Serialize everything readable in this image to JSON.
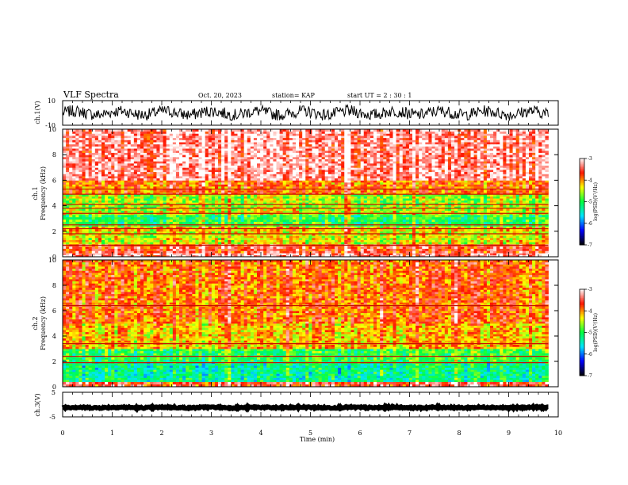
{
  "header": {
    "title": "VLF Spectra",
    "date": "Oct. 20, 2023",
    "station": "station= KAP",
    "start": "start  UT =   2 : 30 : 1"
  },
  "chart_data": [
    {
      "type": "line",
      "panel": "ch1-waveform",
      "ylabel": "ch.1(V)",
      "ylim": [
        -10,
        10
      ],
      "yticks": [
        "10",
        "-10"
      ],
      "xlim": [
        0,
        10
      ],
      "x_extent_min": 9.8,
      "description_values": {
        "mean": 0,
        "amplitude_approx": 6
      }
    },
    {
      "type": "heatmap",
      "panel": "ch1-spectrogram",
      "label_line1": "ch.1",
      "ylabel": "Frequency (kHz)",
      "ylim": [
        0,
        10
      ],
      "yticks": [
        "0",
        "2",
        "4",
        "6",
        "8",
        "10"
      ],
      "xlim": [
        0,
        10
      ],
      "x_extent_min": 9.8,
      "bands_khz": [
        {
          "from": 0,
          "to": 0.3,
          "level": -3.3
        },
        {
          "from": 0.3,
          "to": 1.0,
          "level": -3.6
        },
        {
          "from": 1.0,
          "to": 2.0,
          "level": -4.4
        },
        {
          "from": 2.0,
          "to": 2.4,
          "level": -4.2
        },
        {
          "from": 2.4,
          "to": 3.3,
          "level": -5.0
        },
        {
          "from": 3.3,
          "to": 3.8,
          "level": -4.5
        },
        {
          "from": 3.8,
          "to": 4.9,
          "level": -4.6
        },
        {
          "from": 4.9,
          "to": 6.0,
          "level": -3.9
        },
        {
          "from": 6.0,
          "to": 10.0,
          "level": -3.3
        }
      ],
      "lines_khz": [
        0.9,
        1.8,
        2.2,
        2.5,
        3.4,
        3.8,
        4.1,
        4.9,
        5.3
      ],
      "colorbar": {
        "label": "log(PSD)(V²/Hz)",
        "min": -7,
        "max": -3,
        "ticks": [
          "-3",
          "-4",
          "-5",
          "-6",
          "-7"
        ]
      }
    },
    {
      "type": "heatmap",
      "panel": "ch2-spectrogram",
      "label_line1": "ch.2",
      "ylabel": "Frequency (kHz)",
      "ylim": [
        0,
        10
      ],
      "yticks": [
        "0",
        "2",
        "4",
        "6",
        "8",
        "10"
      ],
      "xlim": [
        0,
        10
      ],
      "x_extent_min": 9.8,
      "bands_khz": [
        {
          "from": 0,
          "to": 0.4,
          "level": -3.6
        },
        {
          "from": 0.4,
          "to": 2.0,
          "level": -5.3
        },
        {
          "from": 2.0,
          "to": 3.0,
          "level": -5.0
        },
        {
          "from": 3.0,
          "to": 5.0,
          "level": -4.2
        },
        {
          "from": 5.0,
          "to": 10.0,
          "level": -3.9
        }
      ],
      "lines_khz": [
        1.9,
        2.4,
        3.4,
        6.4
      ],
      "colorbar": {
        "label": "log(PSD)(V²/Hz)",
        "min": -7,
        "max": -3,
        "ticks": [
          "-3",
          "-4",
          "-5",
          "-6",
          "-7"
        ]
      }
    },
    {
      "type": "line",
      "panel": "ch3-waveform",
      "ylabel": "ch.3(V)",
      "ylim": [
        -5,
        5
      ],
      "yticks": [
        "5",
        "-5"
      ],
      "xlim": [
        0,
        10
      ],
      "xlabel": "Time (min)",
      "xticks": [
        "0",
        "1",
        "2",
        "3",
        "4",
        "5",
        "6",
        "7",
        "8",
        "9",
        "10"
      ],
      "x_extent_min": 9.8,
      "description_values": {
        "mean": -1.2,
        "amplitude_approx": 0.4
      }
    }
  ],
  "colormap": [
    "#000000",
    "#0000ff",
    "#00e5ff",
    "#00ff40",
    "#ffff00",
    "#ff1400",
    "#ffffff"
  ]
}
